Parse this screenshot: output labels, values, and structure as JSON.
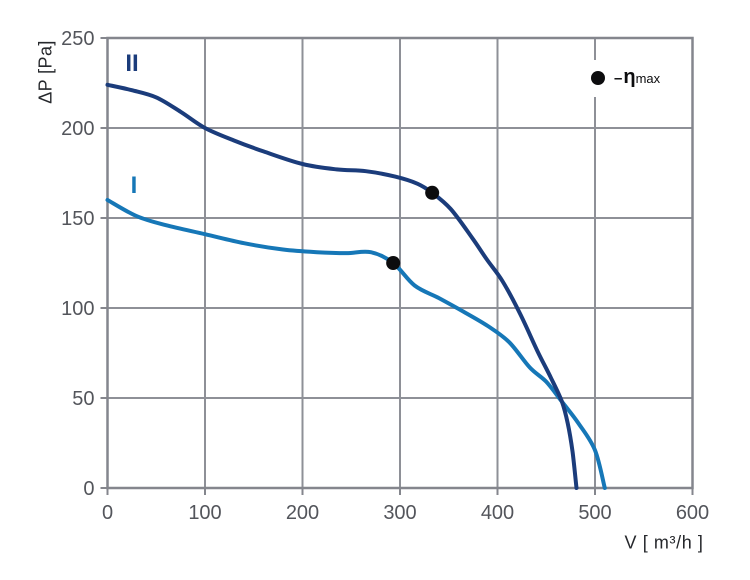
{
  "page": {
    "background": "#ffffff"
  },
  "labels": {
    "curve1": "I",
    "curve2": "II"
  },
  "legend": {
    "dash": "–",
    "symbol": "η",
    "subscript": "max"
  },
  "chart_data": {
    "type": "line",
    "title": "",
    "xlabel": "V [ m³/h ]",
    "ylabel": "ΔP [Pa]",
    "xlim": [
      0,
      600
    ],
    "ylim": [
      0,
      250
    ],
    "x_ticks": [
      0,
      100,
      200,
      300,
      400,
      500,
      600
    ],
    "y_ticks": [
      0,
      50,
      100,
      150,
      200,
      250
    ],
    "grid": true,
    "legend_position": "top-right",
    "legend_label": "ηmax",
    "series": [
      {
        "name": "I",
        "color": "#1677b7",
        "points": [
          [
            0,
            160
          ],
          [
            30,
            151
          ],
          [
            60,
            146
          ],
          [
            100,
            141
          ],
          [
            140,
            136
          ],
          [
            180,
            132.5
          ],
          [
            215,
            131
          ],
          [
            245,
            130.5
          ],
          [
            270,
            131
          ],
          [
            293,
            125
          ],
          [
            315,
            112.5
          ],
          [
            340,
            105.5
          ],
          [
            365,
            98
          ],
          [
            390,
            90
          ],
          [
            412,
            81
          ],
          [
            433,
            67
          ],
          [
            450,
            59
          ],
          [
            466,
            48
          ],
          [
            483,
            36
          ],
          [
            500,
            21
          ],
          [
            510,
            0
          ]
        ]
      },
      {
        "name": "II",
        "color": "#1b3c7b",
        "points": [
          [
            0,
            224
          ],
          [
            25,
            221
          ],
          [
            50,
            217
          ],
          [
            75,
            209
          ],
          [
            100,
            200
          ],
          [
            130,
            193
          ],
          [
            160,
            187
          ],
          [
            200,
            180
          ],
          [
            235,
            177
          ],
          [
            265,
            176
          ],
          [
            295,
            173
          ],
          [
            318,
            169
          ],
          [
            333,
            164
          ],
          [
            352,
            155
          ],
          [
            374,
            139
          ],
          [
            389,
            127
          ],
          [
            405,
            115
          ],
          [
            423,
            97
          ],
          [
            441,
            76
          ],
          [
            455,
            61
          ],
          [
            466,
            48
          ],
          [
            472,
            36
          ],
          [
            477,
            20
          ],
          [
            481,
            0
          ]
        ]
      }
    ],
    "eta_max_points": [
      {
        "series": "I",
        "x": 293,
        "y": 125
      },
      {
        "series": "II",
        "x": 333,
        "y": 164
      }
    ],
    "colors": {
      "grid": "#8e9097",
      "frame": "#84868d",
      "tick_text": "#53555b",
      "axis_text": "#26282c",
      "marker": "#0c0c0e"
    }
  }
}
